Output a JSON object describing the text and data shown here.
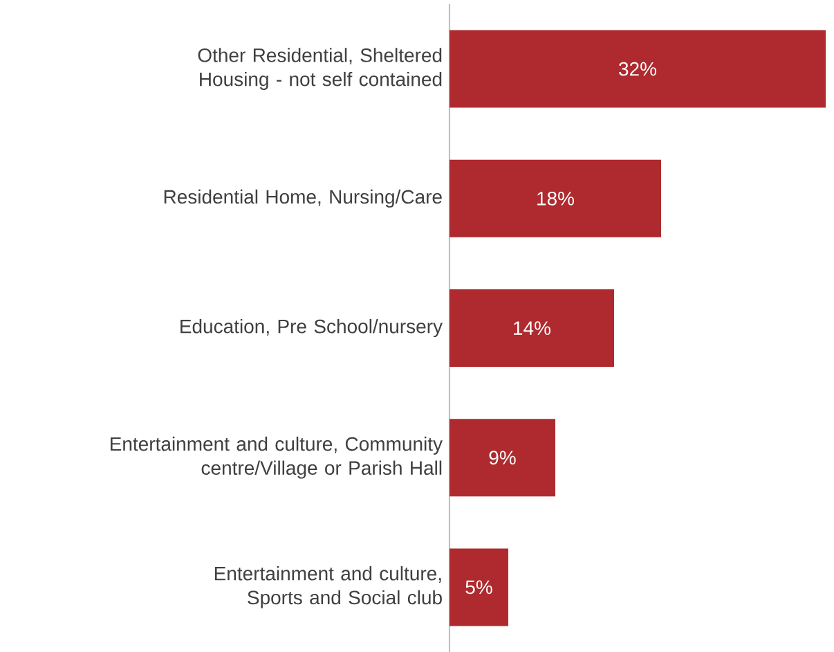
{
  "chart_data": {
    "type": "bar",
    "orientation": "horizontal",
    "categories": [
      "Other Residential, Sheltered Housing - not self contained",
      "Residential Home, Nursing/Care",
      "Education, Pre School/nursery",
      "Entertainment and culture, Community centre/Village or Parish Hall",
      "Entertainment and culture, Sports and Social club"
    ],
    "values": [
      32,
      18,
      14,
      9,
      5
    ],
    "value_labels": [
      "32%",
      "18%",
      "14%",
      "9%",
      "5%"
    ],
    "color": "#ae2a2e",
    "xlim": [
      0,
      32
    ]
  }
}
